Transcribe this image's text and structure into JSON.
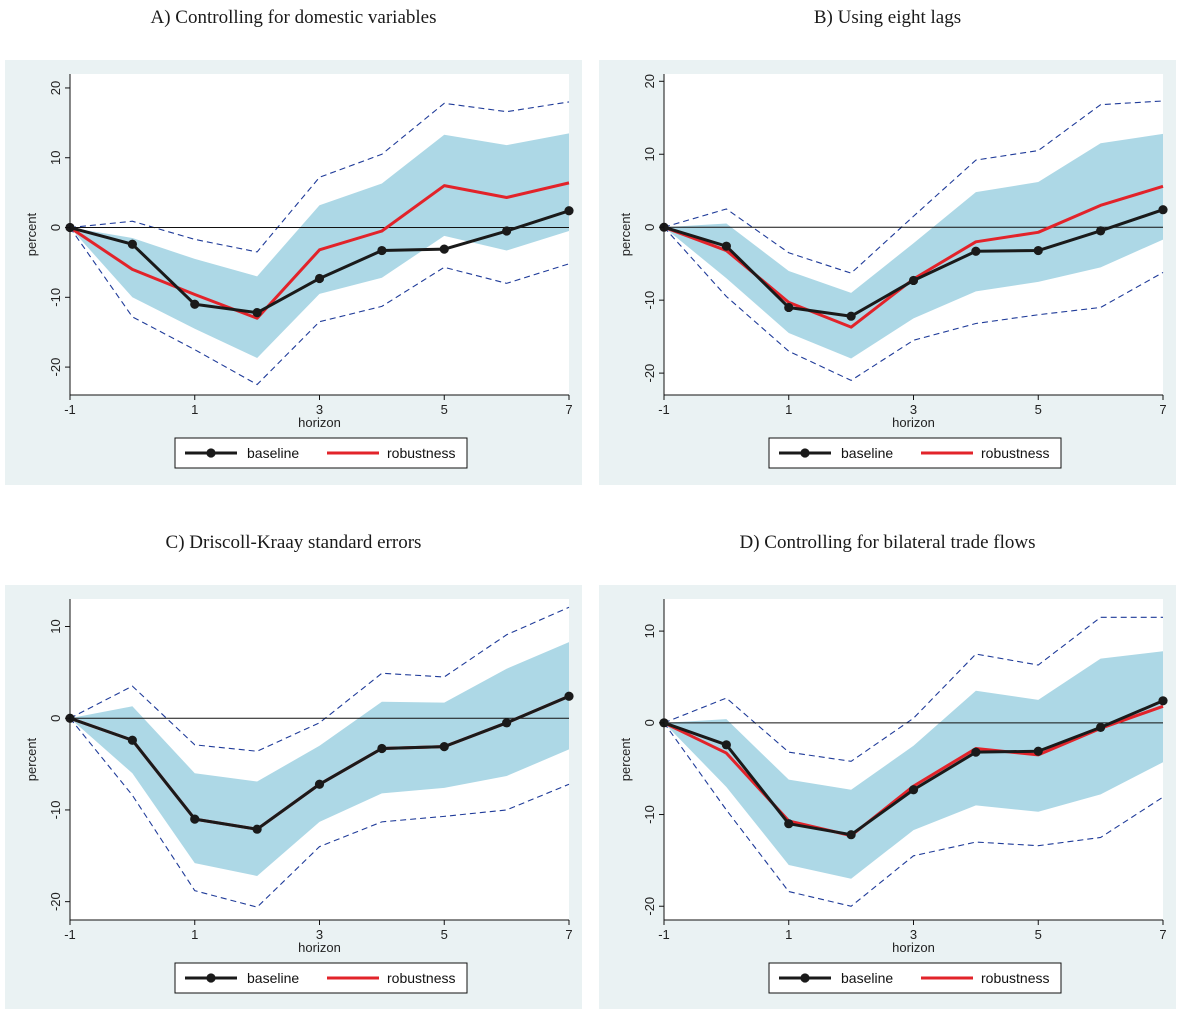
{
  "chart_data": [
    {
      "type": "line",
      "title": "A) Controlling for domestic variables",
      "xlabel": "horizon",
      "ylabel": "percent",
      "xlim": [
        -1,
        7
      ],
      "ylim": [
        -24,
        22
      ],
      "xticks": [
        -1,
        1,
        3,
        5,
        7
      ],
      "yticks": [
        -20,
        -10,
        0,
        10,
        20
      ],
      "x": [
        -1,
        0,
        1,
        2,
        3,
        4,
        5,
        6,
        7
      ],
      "band": {
        "lower": [
          0,
          -10,
          -14.5,
          -18.7,
          -9.5,
          -7.2,
          -1.2,
          -3.3,
          -0.5
        ],
        "upper": [
          0,
          -1.5,
          -4.5,
          -7,
          3.2,
          6.3,
          13.3,
          11.8,
          13.5
        ]
      },
      "dashed_band": {
        "lower": [
          0,
          -12.8,
          -17.5,
          -22.5,
          -13.5,
          -11.3,
          -5.7,
          -8,
          -5.2
        ],
        "upper": [
          0,
          0.9,
          -1.7,
          -3.5,
          7.2,
          10.5,
          17.8,
          16.6,
          18
        ]
      },
      "series": [
        {
          "name": "baseline",
          "color": "#1a1a1a",
          "markers": true,
          "values": [
            0,
            -2.4,
            -11,
            -12.2,
            -7.3,
            -3.3,
            -3.1,
            -0.5,
            2.4
          ]
        },
        {
          "name": "robustness",
          "color": "#e2232a",
          "markers": false,
          "values": [
            0,
            -6,
            -9.6,
            -13,
            -3.2,
            -0.5,
            6,
            4.3,
            6.4
          ]
        }
      ],
      "legend": {
        "position": "bottom",
        "labels": [
          "baseline",
          "robustness"
        ]
      }
    },
    {
      "type": "line",
      "title": "B) Using eight lags",
      "xlabel": "horizon",
      "ylabel": "percent",
      "xlim": [
        -1,
        7
      ],
      "ylim": [
        -23,
        21
      ],
      "xticks": [
        -1,
        1,
        3,
        5,
        7
      ],
      "yticks": [
        -20,
        -10,
        0,
        10,
        20
      ],
      "x": [
        -1,
        0,
        1,
        2,
        3,
        4,
        5,
        6,
        7
      ],
      "band": {
        "lower": [
          0,
          -7,
          -14.5,
          -18,
          -12.5,
          -8.8,
          -7.5,
          -5.5,
          -1.7
        ],
        "upper": [
          0,
          0.5,
          -6,
          -9,
          -2.2,
          4.8,
          6.2,
          11.5,
          12.8
        ]
      },
      "dashed_band": {
        "lower": [
          0,
          -9.5,
          -17,
          -21,
          -15.5,
          -13.2,
          -12,
          -11,
          -6.2
        ],
        "upper": [
          0,
          2.5,
          -3.5,
          -6.3,
          1.5,
          9.2,
          10.5,
          16.8,
          17.3
        ]
      },
      "series": [
        {
          "name": "baseline",
          "color": "#1a1a1a",
          "markers": true,
          "values": [
            0,
            -2.6,
            -11,
            -12.2,
            -7.3,
            -3.3,
            -3.2,
            -0.5,
            2.4
          ]
        },
        {
          "name": "robustness",
          "color": "#e2232a",
          "markers": false,
          "values": [
            0,
            -3.2,
            -10.3,
            -13.7,
            -7.1,
            -2,
            -0.7,
            3,
            5.6
          ]
        }
      ],
      "legend": {
        "position": "bottom",
        "labels": [
          "baseline",
          "robustness"
        ]
      }
    },
    {
      "type": "line",
      "title": "C) Driscoll-Kraay standard errors",
      "xlabel": "horizon",
      "ylabel": "percent",
      "xlim": [
        -1,
        7
      ],
      "ylim": [
        -22,
        13
      ],
      "xticks": [
        -1,
        1,
        3,
        5,
        7
      ],
      "yticks": [
        -20,
        -10,
        0,
        10
      ],
      "x": [
        -1,
        0,
        1,
        2,
        3,
        4,
        5,
        6,
        7
      ],
      "band": {
        "lower": [
          0,
          -6,
          -15.8,
          -17.2,
          -11.3,
          -8.2,
          -7.6,
          -6.3,
          -3.4
        ],
        "upper": [
          0,
          1.3,
          -6,
          -6.9,
          -3,
          1.8,
          1.7,
          5.4,
          8.3
        ]
      },
      "dashed_band": {
        "lower": [
          0,
          -8.4,
          -18.8,
          -20.6,
          -14,
          -11.3,
          -10.7,
          -10,
          -7.2
        ],
        "upper": [
          0,
          3.5,
          -2.9,
          -3.6,
          -0.5,
          4.9,
          4.5,
          9.1,
          12.1
        ]
      },
      "series": [
        {
          "name": "baseline",
          "color": "#1a1a1a",
          "markers": true,
          "values": [
            0,
            -2.4,
            -11,
            -12.1,
            -7.2,
            -3.3,
            -3.1,
            -0.5,
            2.4
          ]
        },
        {
          "name": "robustness",
          "color": "#e2232a",
          "markers": false,
          "values": [
            0,
            -2.4,
            -11,
            -12.1,
            -7.2,
            -3.3,
            -3.1,
            -0.5,
            2.4
          ]
        }
      ],
      "legend": {
        "position": "bottom",
        "labels": [
          "baseline",
          "robustness"
        ]
      }
    },
    {
      "type": "line",
      "title": "D) Controlling for bilateral trade flows",
      "xlabel": "horizon",
      "ylabel": "percent",
      "xlim": [
        -1,
        7
      ],
      "ylim": [
        -21.5,
        13.5
      ],
      "xticks": [
        -1,
        1,
        3,
        5,
        7
      ],
      "yticks": [
        -20,
        -10,
        0,
        10
      ],
      "x": [
        -1,
        0,
        1,
        2,
        3,
        4,
        5,
        6,
        7
      ],
      "band": {
        "lower": [
          0,
          -7,
          -15.5,
          -17,
          -11.7,
          -9,
          -9.7,
          -7.8,
          -4.3
        ],
        "upper": [
          0,
          0.4,
          -6.2,
          -7.3,
          -2.5,
          3.5,
          2.5,
          7,
          7.8
        ]
      },
      "dashed_band": {
        "lower": [
          0,
          -9.5,
          -18.4,
          -20,
          -14.5,
          -13,
          -13.4,
          -12.5,
          -8.1
        ],
        "upper": [
          0,
          2.7,
          -3.2,
          -4.2,
          0.5,
          7.5,
          6.3,
          11.5,
          11.5
        ]
      },
      "series": [
        {
          "name": "baseline",
          "color": "#1a1a1a",
          "markers": true,
          "values": [
            0,
            -2.4,
            -11,
            -12.2,
            -7.3,
            -3.2,
            -3.1,
            -0.5,
            2.4
          ]
        },
        {
          "name": "robustness",
          "color": "#e2232a",
          "markers": false,
          "values": [
            0,
            -3.3,
            -10.7,
            -12.3,
            -6.9,
            -2.8,
            -3.5,
            -0.6,
            1.8
          ]
        }
      ],
      "legend": {
        "position": "bottom",
        "labels": [
          "baseline",
          "robustness"
        ]
      }
    }
  ]
}
